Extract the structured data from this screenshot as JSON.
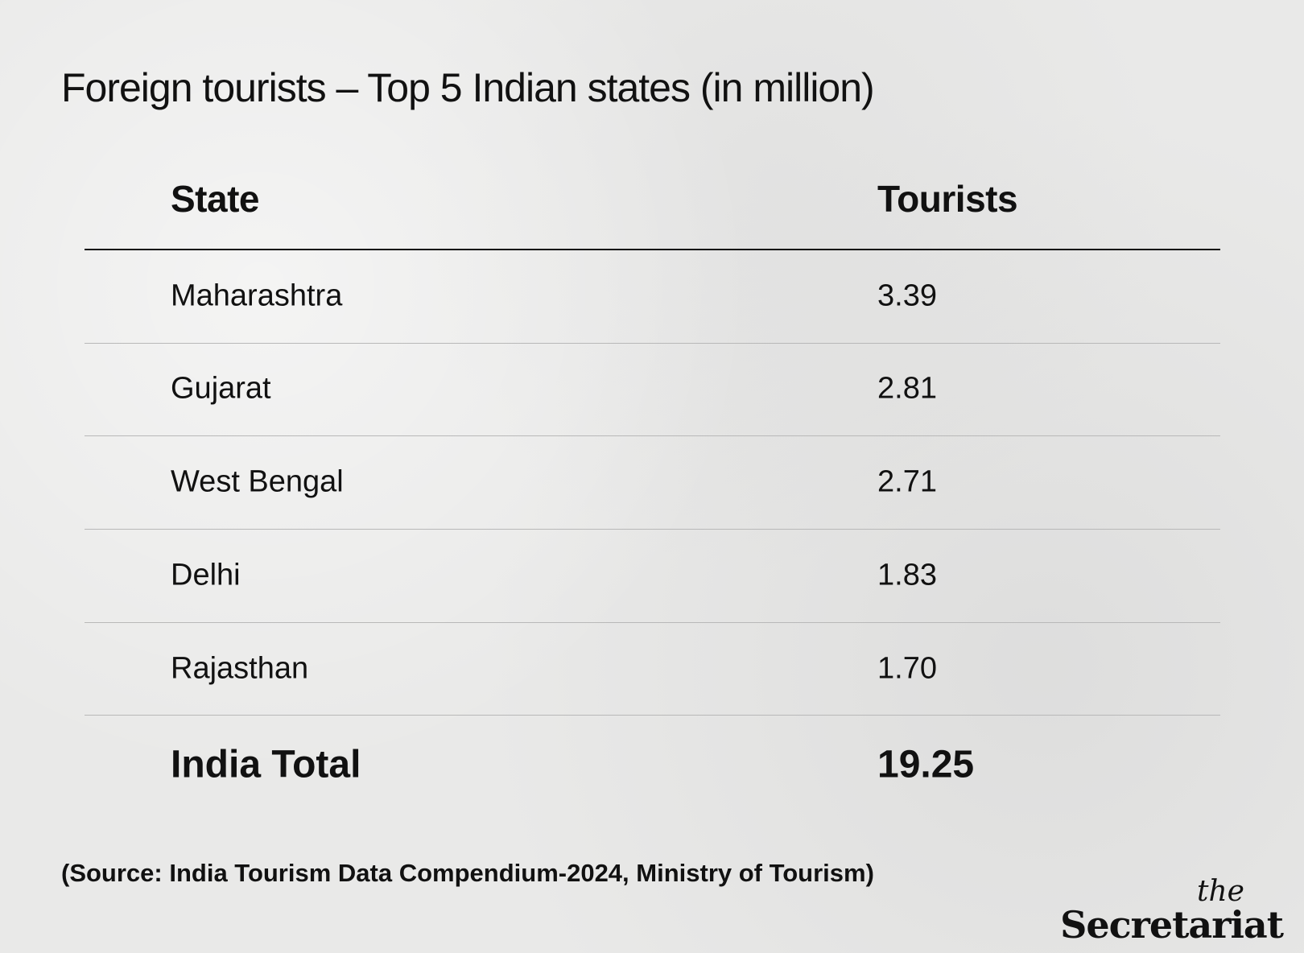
{
  "chart_data": {
    "type": "table",
    "title": "Foreign tourists – Top 5 Indian states (in million)",
    "columns": [
      "State",
      "Tourists"
    ],
    "rows": [
      {
        "state": "Maharashtra",
        "tourists": "3.39"
      },
      {
        "state": "Gujarat",
        "tourists": "2.81"
      },
      {
        "state": "West Bengal",
        "tourists": "2.71"
      },
      {
        "state": "Delhi",
        "tourists": "1.83"
      },
      {
        "state": "Rajasthan",
        "tourists": "1.70"
      }
    ],
    "total": {
      "label": "India Total",
      "value": "19.25"
    },
    "source": "(Source: India Tourism Data Compendium-2024, Ministry of Tourism)"
  },
  "logo": {
    "the": "the",
    "name": "Secretariat"
  }
}
